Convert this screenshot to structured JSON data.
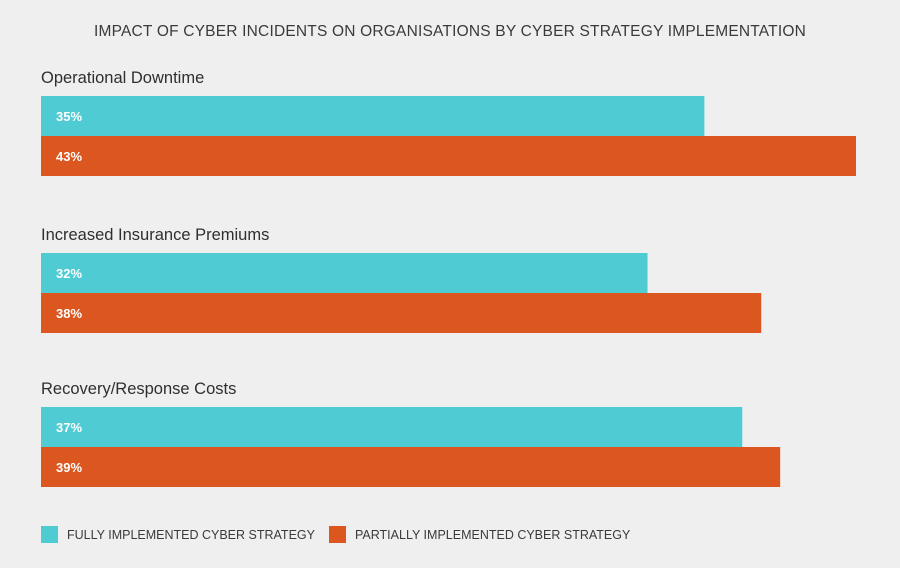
{
  "chart_data": {
    "type": "bar",
    "orientation": "horizontal",
    "title": "IMPACT OF CYBER INCIDENTS ON ORGANISATIONS BY CYBER STRATEGY IMPLEMENTATION",
    "categories": [
      "Operational Downtime",
      "Increased Insurance Premiums",
      "Recovery/Response Costs"
    ],
    "series": [
      {
        "name": "FULLY IMPLEMENTED CYBER STRATEGY",
        "color": "#4ecbd3",
        "values": [
          35,
          32,
          37
        ],
        "labels": [
          "35%",
          "32%",
          "37%"
        ]
      },
      {
        "name": "PARTIALLY IMPLEMENTED CYBER STRATEGY",
        "color": "#dc561f",
        "values": [
          43,
          38,
          39
        ],
        "labels": [
          "43%",
          "38%",
          "39%"
        ]
      }
    ],
    "xlim": [
      0,
      43
    ],
    "grid": false,
    "legend_position": "bottom-left",
    "xlabel": "",
    "ylabel": ""
  }
}
